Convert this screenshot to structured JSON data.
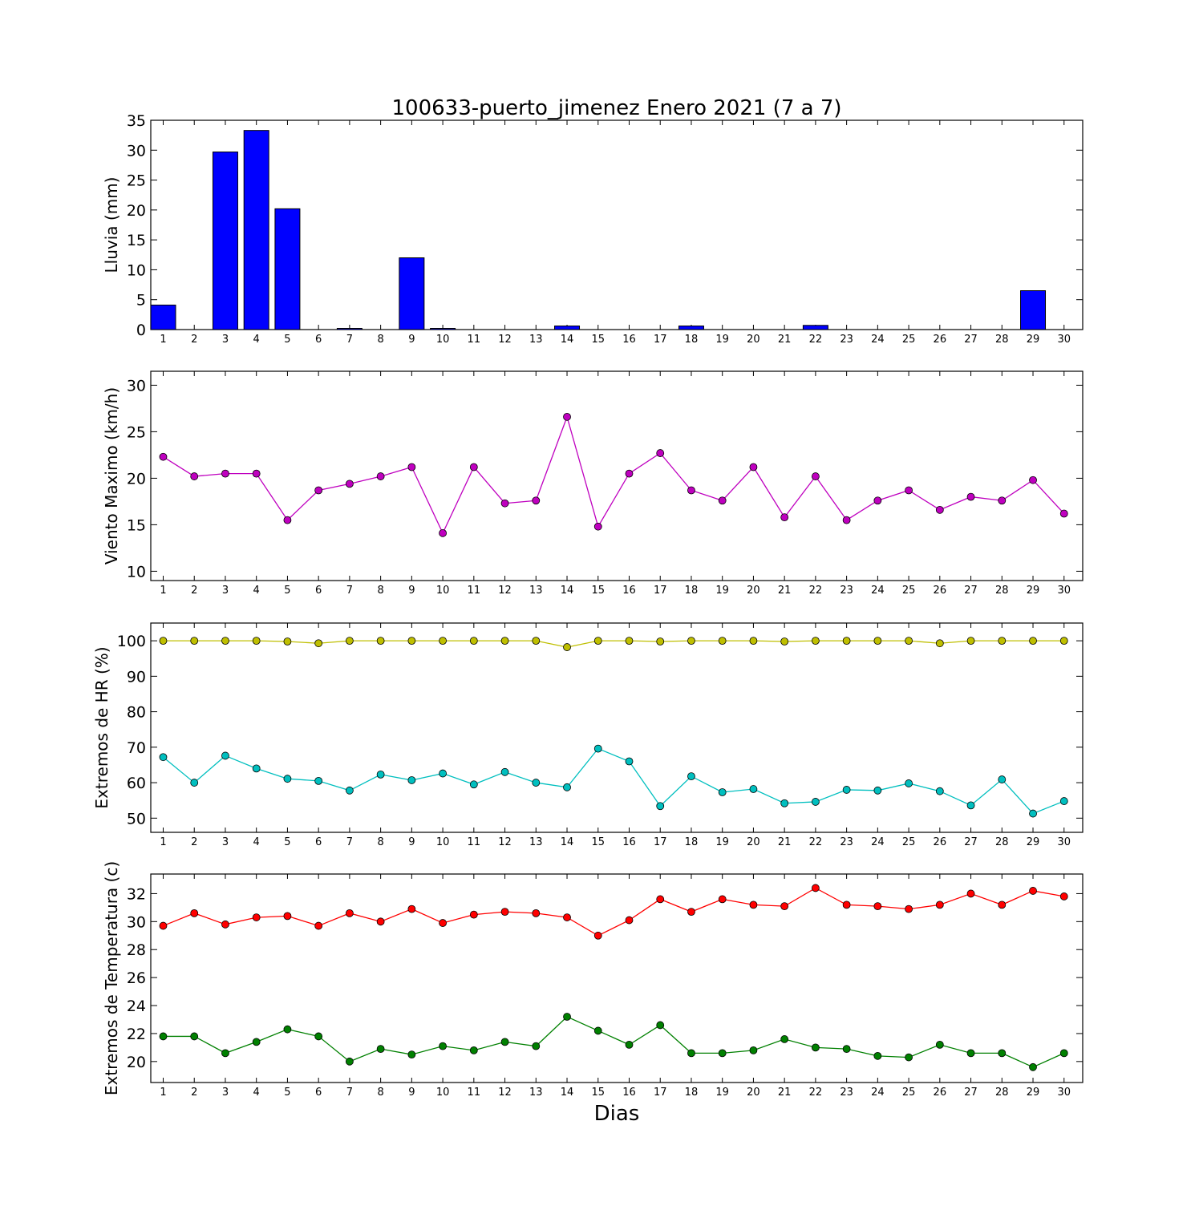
{
  "title": "100633-puerto_jimenez Enero 2021  (7 a 7)",
  "xlabel": "Dias",
  "chart_data": [
    {
      "type": "bar",
      "ylabel": "Lluvia (mm)",
      "ylim": [
        0,
        35
      ],
      "yticks": [
        0,
        5,
        10,
        15,
        20,
        25,
        30,
        35
      ],
      "x": [
        1,
        2,
        3,
        4,
        5,
        6,
        7,
        8,
        9,
        10,
        11,
        12,
        13,
        14,
        15,
        16,
        17,
        18,
        19,
        20,
        21,
        22,
        23,
        24,
        25,
        26,
        27,
        28,
        29,
        30
      ],
      "xlim": [
        0.6,
        30.6
      ],
      "color": "#0000ff",
      "values": [
        4.1,
        0,
        29.7,
        33.3,
        20.2,
        0,
        0.2,
        0,
        12.0,
        0.2,
        0,
        0,
        0,
        0.6,
        0,
        0,
        0,
        0.6,
        0,
        0,
        0,
        0.7,
        0,
        0,
        0,
        0,
        0,
        0,
        6.5,
        0
      ],
      "grid": false
    },
    {
      "type": "line",
      "ylabel": "Viento Maximo (km/h)",
      "ylim": [
        9,
        31.5
      ],
      "yticks": [
        10,
        15,
        20,
        25,
        30
      ],
      "x": [
        1,
        2,
        3,
        4,
        5,
        6,
        7,
        8,
        9,
        10,
        11,
        12,
        13,
        14,
        15,
        16,
        17,
        18,
        19,
        20,
        21,
        22,
        23,
        24,
        25,
        26,
        27,
        28,
        29,
        30
      ],
      "xlim": [
        0.6,
        30.6
      ],
      "series": [
        {
          "color": "#bf00bf",
          "values": [
            22.3,
            20.2,
            20.5,
            20.5,
            15.5,
            18.7,
            19.4,
            20.2,
            21.2,
            14.1,
            21.2,
            17.3,
            17.6,
            26.6,
            14.8,
            20.5,
            22.7,
            18.7,
            17.6,
            21.2,
            15.8,
            20.2,
            15.5,
            17.6,
            18.7,
            16.6,
            18.0,
            17.6,
            19.8,
            16.2
          ]
        }
      ],
      "grid": false
    },
    {
      "type": "line",
      "ylabel": "Extremos de HR (%)",
      "ylim": [
        46,
        105
      ],
      "yticks": [
        50,
        60,
        70,
        80,
        90,
        100
      ],
      "x": [
        1,
        2,
        3,
        4,
        5,
        6,
        7,
        8,
        9,
        10,
        11,
        12,
        13,
        14,
        15,
        16,
        17,
        18,
        19,
        20,
        21,
        22,
        23,
        24,
        25,
        26,
        27,
        28,
        29,
        30
      ],
      "xlim": [
        0.6,
        30.6
      ],
      "series": [
        {
          "color": "#bfbf00",
          "values": [
            100,
            100,
            100,
            100,
            99.8,
            99.3,
            100,
            100,
            100,
            100,
            100,
            100,
            100,
            98.2,
            100,
            100,
            99.8,
            100,
            100,
            100,
            99.8,
            100,
            100,
            100,
            100,
            99.3,
            100,
            100,
            100,
            100
          ]
        },
        {
          "color": "#00bfbf",
          "values": [
            67.2,
            60.0,
            67.6,
            64.0,
            61.1,
            60.5,
            57.8,
            62.3,
            60.7,
            62.6,
            59.5,
            63.0,
            60.0,
            58.7,
            69.6,
            66.0,
            53.4,
            61.8,
            57.3,
            58.2,
            54.2,
            54.6,
            58.0,
            57.8,
            59.8,
            57.6,
            53.6,
            60.9,
            51.3,
            54.8
          ]
        }
      ],
      "grid": false
    },
    {
      "type": "line",
      "ylabel": "Extremos de Temperatura (c)",
      "ylim": [
        18.5,
        33.4
      ],
      "yticks": [
        20,
        22,
        24,
        26,
        28,
        30,
        32
      ],
      "x": [
        1,
        2,
        3,
        4,
        5,
        6,
        7,
        8,
        9,
        10,
        11,
        12,
        13,
        14,
        15,
        16,
        17,
        18,
        19,
        20,
        21,
        22,
        23,
        24,
        25,
        26,
        27,
        28,
        29,
        30
      ],
      "xlim": [
        0.6,
        30.6
      ],
      "series": [
        {
          "color": "#ff0000",
          "values": [
            29.7,
            30.6,
            29.8,
            30.3,
            30.4,
            29.7,
            30.6,
            30.0,
            30.9,
            29.9,
            30.5,
            30.7,
            30.6,
            30.3,
            29.0,
            30.1,
            31.6,
            30.7,
            31.6,
            31.2,
            31.1,
            32.4,
            31.2,
            31.1,
            30.9,
            31.2,
            32.0,
            31.2,
            32.2,
            31.8
          ]
        },
        {
          "color": "#008000",
          "values": [
            21.8,
            21.8,
            20.6,
            21.4,
            22.3,
            21.8,
            20.0,
            20.9,
            20.5,
            21.1,
            20.8,
            21.4,
            21.1,
            23.2,
            22.2,
            21.2,
            22.6,
            20.6,
            20.6,
            20.8,
            21.6,
            21.0,
            20.9,
            20.4,
            20.3,
            21.2,
            20.6,
            20.6,
            19.6,
            20.6
          ]
        }
      ],
      "grid": false
    }
  ]
}
